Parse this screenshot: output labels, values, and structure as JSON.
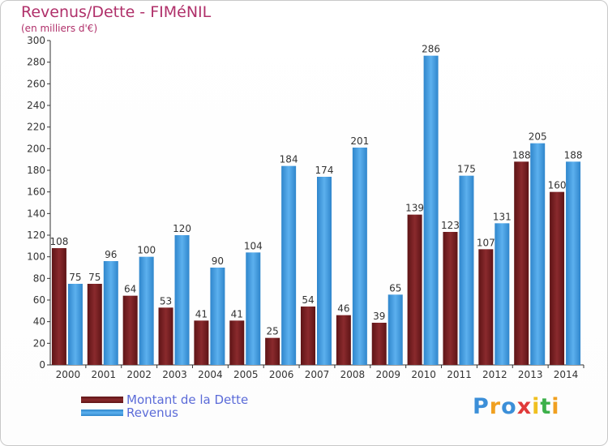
{
  "header": {
    "title": "Revenus/Dette - FIMéNIL",
    "subtitle": "(en milliers d'€)"
  },
  "legend": {
    "items": [
      {
        "label": "Montant de la Dette",
        "color": "#7a1f22"
      },
      {
        "label": "Revenus",
        "color": "#3a96dd"
      }
    ]
  },
  "logo": {
    "letters": [
      {
        "ch": "P",
        "color": "#3c8fd8"
      },
      {
        "ch": "r",
        "color": "#f0a020"
      },
      {
        "ch": "o",
        "color": "#3c8fd8"
      },
      {
        "ch": "x",
        "color": "#e03a3a"
      },
      {
        "ch": "i",
        "color": "#f0c020"
      },
      {
        "ch": "t",
        "color": "#3cb04a"
      },
      {
        "ch": "i",
        "color": "#f0a020"
      }
    ]
  },
  "chart_data": {
    "type": "bar",
    "title": "Revenus/Dette - FIMéNIL",
    "subtitle": "(en milliers d'€)",
    "categories": [
      "2000",
      "2001",
      "2002",
      "2003",
      "2004",
      "2005",
      "2006",
      "2007",
      "2008",
      "2009",
      "2010",
      "2011",
      "2012",
      "2013",
      "2014"
    ],
    "series": [
      {
        "name": "Montant de la Dette",
        "color": "#7a1f22",
        "values": [
          108,
          75,
          64,
          53,
          41,
          41,
          25,
          54,
          46,
          39,
          139,
          123,
          107,
          188,
          160
        ]
      },
      {
        "name": "Revenus",
        "color": "#3a96dd",
        "values": [
          75,
          96,
          100,
          120,
          90,
          104,
          184,
          174,
          201,
          65,
          286,
          175,
          131,
          205,
          188
        ]
      }
    ],
    "ylim": [
      0,
      300
    ],
    "yticks": [
      0,
      20,
      40,
      60,
      80,
      100,
      120,
      140,
      160,
      180,
      200,
      220,
      240,
      260,
      280,
      300
    ],
    "grid": false,
    "legend_position": "bottom-left"
  }
}
